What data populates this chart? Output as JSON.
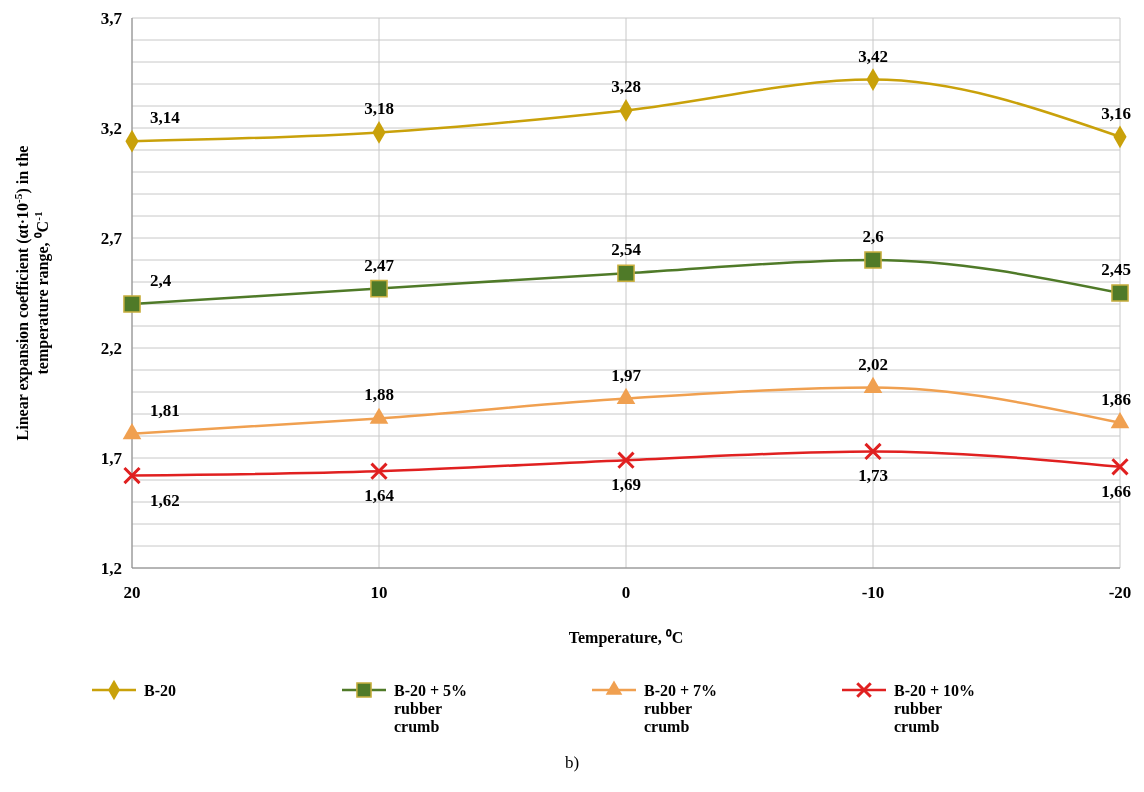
{
  "chart_data": {
    "type": "line",
    "xlabel": "Temperature,  ⁰C",
    "ylabel": "Linear expansion coefficient (αt·10$^{-5}$) in the temperature  range, ⁰C$^{-1}$",
    "categories": [
      "20",
      "10",
      "0",
      "-10",
      "-20"
    ],
    "series": [
      {
        "name": "B-20",
        "color": "#c9a10a",
        "marker": "diamond",
        "values": [
          3.14,
          3.18,
          3.28,
          3.42,
          3.16
        ],
        "value_labels": [
          "3,14",
          "3,18",
          "3,28",
          "3,42",
          "3,16"
        ]
      },
      {
        "name": "B-20 + 5% rubber crumb",
        "color": "#4f7a28",
        "marker": "square",
        "values": [
          2.4,
          2.47,
          2.54,
          2.6,
          2.45
        ],
        "value_labels": [
          "2,4",
          "2,47",
          "2,54",
          "2,6",
          "2,45"
        ]
      },
      {
        "name": "B-20 + 7% rubber crumb",
        "color": "#f0a050",
        "marker": "triangle",
        "values": [
          1.81,
          1.88,
          1.97,
          2.02,
          1.86
        ],
        "value_labels": [
          "1,81",
          "1,88",
          "1,97",
          "2,02",
          "1,86"
        ]
      },
      {
        "name": "B-20 + 10% rubber crumb",
        "color": "#e02020",
        "marker": "cross",
        "values": [
          1.62,
          1.64,
          1.69,
          1.73,
          1.66
        ],
        "value_labels": [
          "1,62",
          "1,64",
          "1,69",
          "1,73",
          "1,66"
        ]
      }
    ],
    "ylim": [
      1.2,
      3.7
    ],
    "yticks": [
      {
        "value": 1.2,
        "label": "1,2"
      },
      {
        "value": 1.3,
        "label": null
      },
      {
        "value": 1.4,
        "label": null
      },
      {
        "value": 1.5,
        "label": null
      },
      {
        "value": 1.6,
        "label": null
      },
      {
        "value": 1.7,
        "label": "1,7"
      },
      {
        "value": 1.8,
        "label": null
      },
      {
        "value": 1.9,
        "label": null
      },
      {
        "value": 2.0,
        "label": null
      },
      {
        "value": 2.1,
        "label": null
      },
      {
        "value": 2.2,
        "label": "2,2"
      },
      {
        "value": 2.3,
        "label": null
      },
      {
        "value": 2.4,
        "label": null
      },
      {
        "value": 2.5,
        "label": null
      },
      {
        "value": 2.6,
        "label": null
      },
      {
        "value": 2.7,
        "label": "2,7"
      },
      {
        "value": 2.8,
        "label": null
      },
      {
        "value": 2.9,
        "label": null
      },
      {
        "value": 3.0,
        "label": null
      },
      {
        "value": 3.1,
        "label": null
      },
      {
        "value": 3.2,
        "label": "3,2"
      },
      {
        "value": 3.3,
        "label": null
      },
      {
        "value": 3.4,
        "label": null
      },
      {
        "value": 3.5,
        "label": null
      },
      {
        "value": 3.6,
        "label": null
      },
      {
        "value": 3.7,
        "label": "3,7"
      }
    ],
    "grid": true,
    "legend": "bottom",
    "line_style": "solid",
    "annotations": [
      "b)"
    ]
  }
}
